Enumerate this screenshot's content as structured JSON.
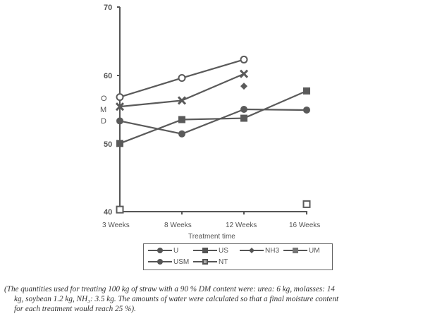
{
  "chart_data": {
    "type": "line",
    "title": "",
    "xlabel": "Treatment time",
    "ylabel": "",
    "categories": [
      "3 Weeks",
      "8 Weeks",
      "12 Weeks",
      "16 Weeks"
    ],
    "ylim": [
      40,
      70
    ],
    "yticks": [
      40,
      50,
      60,
      70
    ],
    "grid": false,
    "legend_position": "bottom",
    "side_labels": [
      "O",
      "M",
      "D"
    ],
    "series": [
      {
        "name": "U",
        "marker": "open-circle",
        "values": [
          56.8,
          59.6,
          62.3,
          null
        ]
      },
      {
        "name": "US",
        "marker": "square",
        "values": [
          50.0,
          53.5,
          53.7,
          57.7
        ]
      },
      {
        "name": "NH3",
        "marker": "diamond",
        "values": [
          null,
          null,
          58.4,
          null
        ]
      },
      {
        "name": "UM",
        "marker": "x",
        "values": [
          55.4,
          56.3,
          60.2,
          null
        ]
      },
      {
        "name": "USM",
        "marker": "circle",
        "values": [
          53.3,
          51.4,
          55.0,
          54.9
        ]
      },
      {
        "name": "NT",
        "marker": "open-square",
        "values": [
          40.3,
          null,
          null,
          41.1
        ]
      }
    ]
  },
  "axis": {
    "y_ticks": [
      "70",
      "60",
      "50",
      "40"
    ],
    "x_ticks": [
      "3 Weeks",
      "8 Weeks",
      "12 Weeks",
      "16 Weeks"
    ],
    "x_title": "Treatment time",
    "side_labels": [
      "O",
      "M",
      "D"
    ]
  },
  "legend": {
    "items": [
      "U",
      "US",
      "NH3",
      "UM",
      "USM",
      "NT"
    ]
  },
  "caption": {
    "line1": "(The quantities used for treating 100 kg of straw with a 90 % DM content were: urea: 6 kg, molasses: 14",
    "line2": "kg, soybean 1.2 kg, NH₃: 3.5 kg. The amounts of water were calculated so that a final moisture content",
    "line3": "for each treatment would reach 25 %)."
  },
  "colors": {
    "ink": "#5a5a5a"
  }
}
